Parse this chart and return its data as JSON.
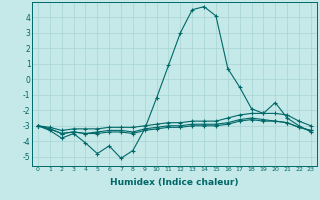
{
  "xlabel": "Humidex (Indice chaleur)",
  "ylabel": "",
  "background_color": "#c5e8e8",
  "grid_color": "#a8d4d4",
  "line_color": "#006868",
  "xlim": [
    -0.5,
    23.5
  ],
  "ylim": [
    -5.6,
    5.0
  ],
  "xticks": [
    0,
    1,
    2,
    3,
    4,
    5,
    6,
    7,
    8,
    9,
    10,
    11,
    12,
    13,
    14,
    15,
    16,
    17,
    18,
    19,
    20,
    21,
    22,
    23
  ],
  "yticks": [
    -5,
    -4,
    -3,
    -2,
    -1,
    0,
    1,
    2,
    3,
    4
  ],
  "series": [
    {
      "x": [
        0,
        1,
        2,
        3,
        4,
        5,
        6,
        7,
        8,
        9,
        10,
        11,
        12,
        13,
        14,
        15,
        16,
        17,
        18,
        19,
        20,
        21,
        22,
        23
      ],
      "y": [
        -3.0,
        -3.3,
        -3.8,
        -3.5,
        -4.1,
        -4.8,
        -4.3,
        -5.1,
        -4.6,
        -3.2,
        -1.2,
        0.9,
        3.0,
        4.5,
        4.7,
        4.1,
        0.7,
        -0.5,
        -1.9,
        -2.2,
        -1.5,
        -2.5,
        -3.0,
        -3.4
      ]
    },
    {
      "x": [
        0,
        1,
        2,
        3,
        4,
        5,
        6,
        7,
        8,
        9,
        10,
        11,
        12,
        13,
        14,
        15,
        16,
        17,
        18,
        19,
        20,
        21,
        22,
        23
      ],
      "y": [
        -3.0,
        -3.1,
        -3.3,
        -3.2,
        -3.2,
        -3.2,
        -3.1,
        -3.1,
        -3.1,
        -3.0,
        -2.9,
        -2.8,
        -2.8,
        -2.7,
        -2.7,
        -2.7,
        -2.5,
        -2.3,
        -2.2,
        -2.2,
        -2.2,
        -2.3,
        -2.7,
        -3.0
      ]
    },
    {
      "x": [
        0,
        1,
        2,
        3,
        4,
        5,
        6,
        7,
        8,
        9,
        10,
        11,
        12,
        13,
        14,
        15,
        16,
        17,
        18,
        19,
        20,
        21,
        22,
        23
      ],
      "y": [
        -3.0,
        -3.2,
        -3.5,
        -3.4,
        -3.5,
        -3.4,
        -3.3,
        -3.3,
        -3.4,
        -3.2,
        -3.1,
        -3.0,
        -3.0,
        -2.9,
        -2.9,
        -2.9,
        -2.8,
        -2.6,
        -2.5,
        -2.6,
        -2.7,
        -2.8,
        -3.1,
        -3.3
      ]
    },
    {
      "x": [
        0,
        1,
        2,
        3,
        4,
        5,
        6,
        7,
        8,
        9,
        10,
        11,
        12,
        13,
        14,
        15,
        16,
        17,
        18,
        19,
        20,
        21,
        22,
        23
      ],
      "y": [
        -3.0,
        -3.2,
        -3.5,
        -3.4,
        -3.5,
        -3.5,
        -3.4,
        -3.4,
        -3.5,
        -3.3,
        -3.2,
        -3.1,
        -3.1,
        -3.0,
        -3.0,
        -3.0,
        -2.9,
        -2.7,
        -2.6,
        -2.7,
        -2.7,
        -2.8,
        -3.1,
        -3.3
      ]
    }
  ]
}
